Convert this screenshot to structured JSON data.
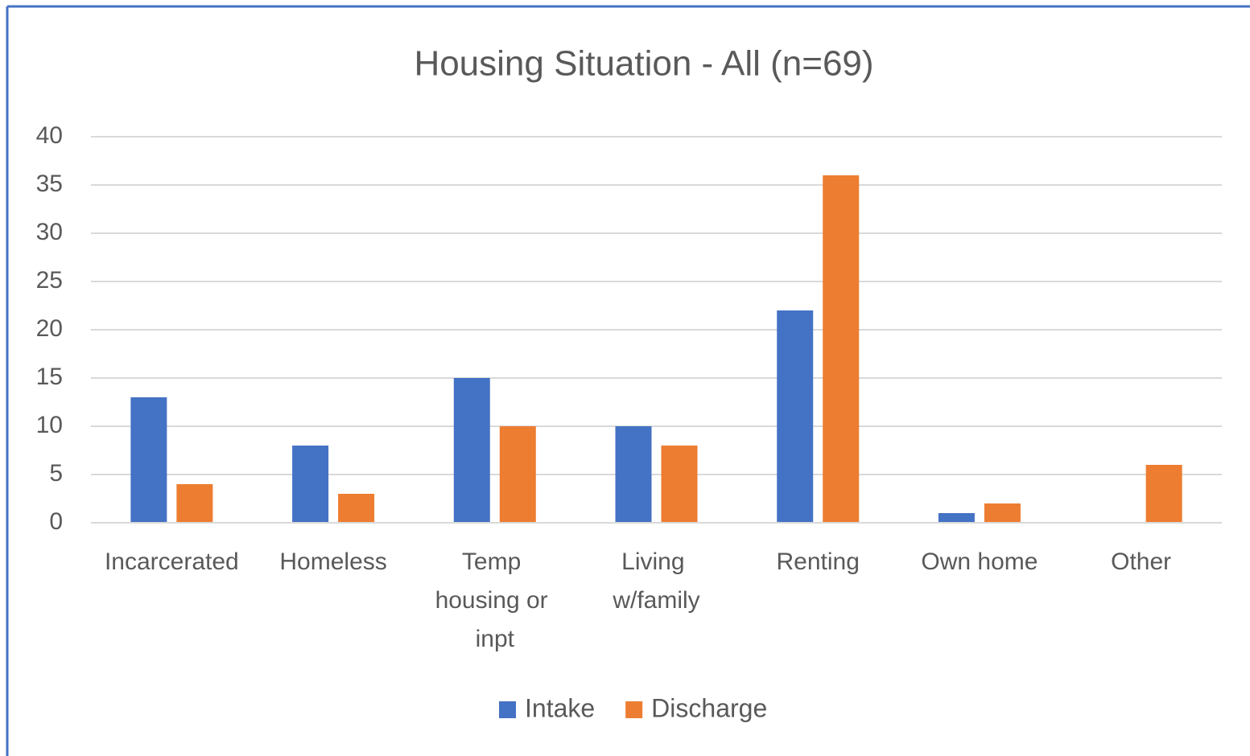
{
  "chart_data": {
    "type": "bar",
    "title": "Housing Situation - All (n=69)",
    "categories": [
      "Incarcerated",
      "Homeless",
      "Temp housing or inpt",
      "Living w/family",
      "Renting",
      "Own home",
      "Other"
    ],
    "series": [
      {
        "name": "Intake",
        "color": "#4472c4",
        "values": [
          13,
          8,
          15,
          10,
          22,
          1,
          0
        ]
      },
      {
        "name": "Discharge",
        "color": "#ed7d31",
        "values": [
          4,
          3,
          10,
          8,
          36,
          2,
          6
        ]
      }
    ],
    "ylim": [
      0,
      40
    ],
    "yticks": [
      0,
      5,
      10,
      15,
      20,
      25,
      30,
      35,
      40
    ],
    "grid": true,
    "legend": "bottom"
  }
}
